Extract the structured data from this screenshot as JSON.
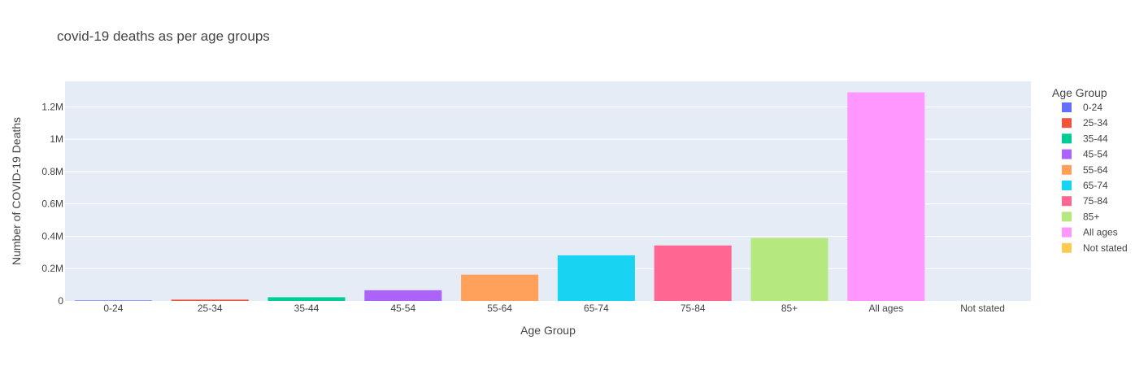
{
  "chart_data": {
    "type": "bar",
    "title": "covid-19 deaths as per age groups",
    "xlabel": "Age Group",
    "ylabel": "Number of COVID-19 Deaths",
    "categories": [
      "0-24",
      "25-34",
      "35-44",
      "45-54",
      "55-64",
      "65-74",
      "75-84",
      "85+",
      "All ages",
      "Not stated"
    ],
    "values": [
      3000,
      8000,
      23000,
      66000,
      163000,
      282000,
      343000,
      389000,
      1290000,
      0
    ],
    "colors": [
      "#636efa",
      "#EF553B",
      "#00cc96",
      "#ab63fa",
      "#FFA15A",
      "#19d3f3",
      "#FF6692",
      "#B6E880",
      "#FF97FF",
      "#FECB52"
    ],
    "ylim": [
      0,
      1358000
    ],
    "yticks": [
      0,
      200000,
      400000,
      600000,
      800000,
      1000000,
      1200000
    ],
    "ytick_labels": [
      "0",
      "0.2M",
      "0.4M",
      "0.6M",
      "0.8M",
      "1M",
      "1.2M"
    ],
    "legend_title": "Age Group",
    "legend_placement": "right",
    "grid": true,
    "plot_bgcolor": "#e5ecf6"
  }
}
